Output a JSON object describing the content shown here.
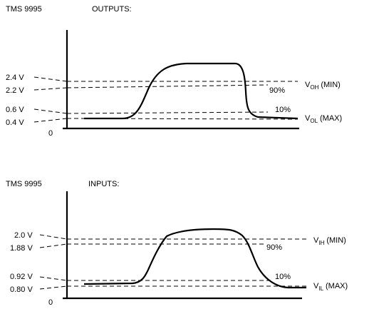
{
  "outputs_panel": {
    "device": "TMS 9995",
    "title": "OUTPUTS:",
    "voltage_labels": [
      "2.4 V",
      "2.2 V",
      "0.6 V",
      "0.4 V"
    ],
    "zero_label": "0",
    "pct_90": "90%",
    "pct_10": "10%",
    "voh": {
      "v": "V",
      "sub": "OH",
      "suffix": "(MIN)"
    },
    "vol": {
      "v": "V",
      "sub": "OL",
      "suffix": "(MAX)"
    }
  },
  "inputs_panel": {
    "device": "TMS 9995",
    "title": "INPUTS:",
    "voltage_labels": [
      "2.0 V",
      "1.88 V",
      "0.92 V",
      "0.80 V"
    ],
    "zero_label": "0",
    "pct_90": "90%",
    "pct_10": "10%",
    "vih": {
      "v": "V",
      "sub": "IH",
      "suffix": "(MIN)"
    },
    "vil": {
      "v": "V",
      "sub": "IL",
      "suffix": "(MAX)"
    }
  }
}
